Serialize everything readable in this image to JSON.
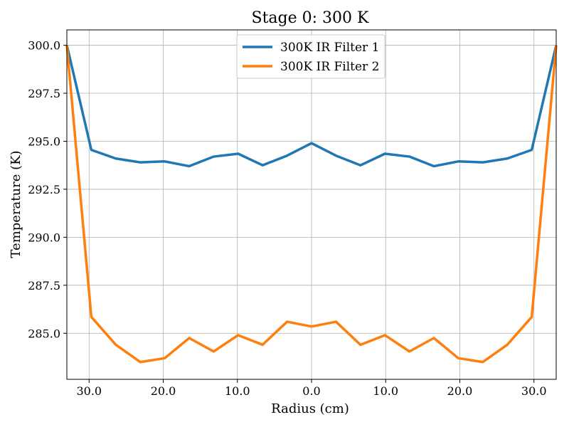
{
  "chart_data": {
    "type": "line",
    "title": "Stage 0: 300 K",
    "xlabel": "Radius (cm)",
    "ylabel": "Temperature (K)",
    "x": [
      -33,
      -29.7,
      -26.4,
      -23.1,
      -19.8,
      -16.5,
      -13.2,
      -9.9,
      -6.6,
      -3.3,
      0,
      3.3,
      6.6,
      9.9,
      13.2,
      16.5,
      19.8,
      23.1,
      26.4,
      29.7,
      33
    ],
    "xlim": [
      -33,
      33
    ],
    "ylim": [
      282.6,
      300.8
    ],
    "xticks": [
      {
        "value": -30,
        "label": "30.0"
      },
      {
        "value": -20,
        "label": "20.0"
      },
      {
        "value": -10,
        "label": "10.0"
      },
      {
        "value": 0,
        "label": "0.0"
      },
      {
        "value": 10,
        "label": "10.0"
      },
      {
        "value": 20,
        "label": "20.0"
      },
      {
        "value": 30,
        "label": "30.0"
      }
    ],
    "yticks": [
      {
        "value": 285.0,
        "label": "285.0"
      },
      {
        "value": 287.5,
        "label": "287.5"
      },
      {
        "value": 290.0,
        "label": "290.0"
      },
      {
        "value": 292.5,
        "label": "292.5"
      },
      {
        "value": 295.0,
        "label": "295.0"
      },
      {
        "value": 297.5,
        "label": "297.5"
      },
      {
        "value": 300.0,
        "label": "300.0"
      }
    ],
    "grid": true,
    "legend": "top-center",
    "series": [
      {
        "name": "300K IR Filter 1",
        "color": "#1f77b4",
        "values": [
          300.0,
          294.55,
          294.1,
          293.9,
          293.95,
          293.7,
          294.2,
          294.35,
          293.75,
          294.25,
          294.9,
          294.25,
          293.75,
          294.35,
          294.2,
          293.7,
          293.95,
          293.9,
          294.1,
          294.55,
          300.0
        ]
      },
      {
        "name": "300K IR Filter 2",
        "color": "#ff7f0e",
        "values": [
          300.0,
          285.85,
          284.4,
          283.5,
          283.7,
          284.75,
          284.05,
          284.9,
          284.4,
          285.6,
          285.35,
          285.6,
          284.4,
          284.9,
          284.05,
          284.75,
          283.7,
          283.5,
          284.4,
          285.85,
          300.0
        ]
      }
    ]
  }
}
